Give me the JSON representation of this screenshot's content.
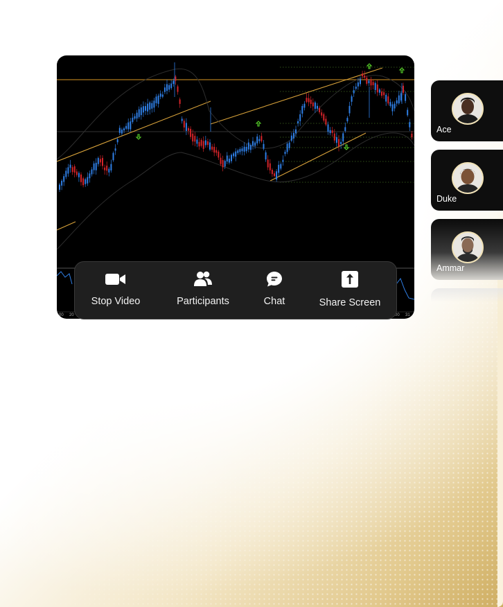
{
  "toolbar": {
    "stop_video_label": "Stop Video",
    "participants_label": "Participants",
    "chat_label": "Chat",
    "share_screen_label": "Share Screen"
  },
  "participants": [
    {
      "name": "Ace"
    },
    {
      "name": "Duke"
    },
    {
      "name": "Ammar"
    }
  ],
  "chart_axis": {
    "left_ticks": [
      "00",
      "20"
    ],
    "right_ticks": [
      "00",
      "31"
    ]
  },
  "icons": {
    "video": "video-camera-icon",
    "participants": "users-icon",
    "chat": "chat-bubble-icon",
    "share": "share-screen-icon"
  },
  "colors": {
    "bull_candle": "#2f7fe6",
    "bear_candle": "#d4242a",
    "trend_line": "#d8a23a",
    "signal_arrow": "#58d42a",
    "toolbar_bg": "#1f1f1f"
  }
}
